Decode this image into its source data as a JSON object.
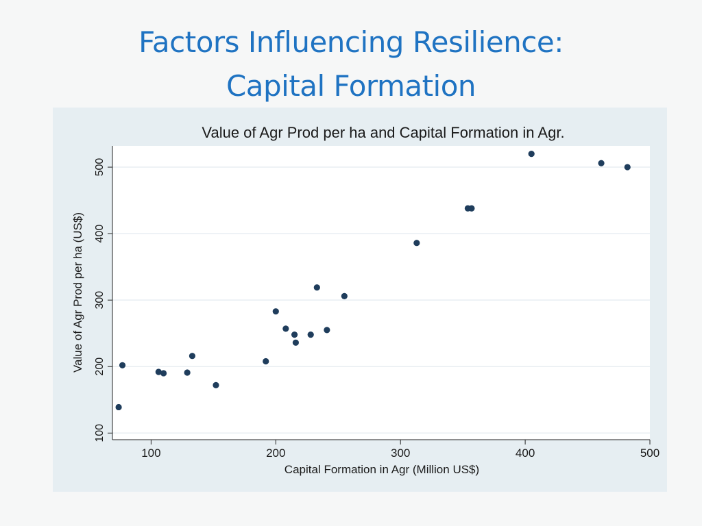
{
  "slide": {
    "title_line1": "Factors Influencing Resilience:",
    "title_line2": "Capital Formation"
  },
  "chart_data": {
    "type": "scatter",
    "title": "Value of Agr Prod per ha and Capital Formation in Agr.",
    "xlabel": "Capital Formation in Agr (Million US$)",
    "ylabel": "Value of Agr Prod per ha (US$)",
    "xlim": [
      69,
      500
    ],
    "ylim": [
      90,
      532
    ],
    "xticks": [
      100,
      200,
      300,
      400,
      500
    ],
    "yticks": [
      100,
      200,
      300,
      400,
      500
    ],
    "grid": true,
    "legend": "none",
    "colors": {
      "panel_background": "#e6eef2",
      "plot_background": "#ffffff",
      "marker": "#1f3d5c",
      "gridline": "#e8eef2",
      "title_text": "#1f73c2"
    },
    "x": [
      74,
      77,
      106,
      110,
      129,
      133,
      152,
      192,
      200,
      208,
      215,
      216,
      228,
      233,
      241,
      255,
      313,
      354,
      357,
      405,
      461,
      482
    ],
    "y": [
      139,
      202,
      192,
      190,
      191,
      216,
      172,
      208,
      283,
      257,
      248,
      236,
      248,
      319,
      255,
      306,
      386,
      438,
      438,
      520,
      506,
      500
    ]
  }
}
